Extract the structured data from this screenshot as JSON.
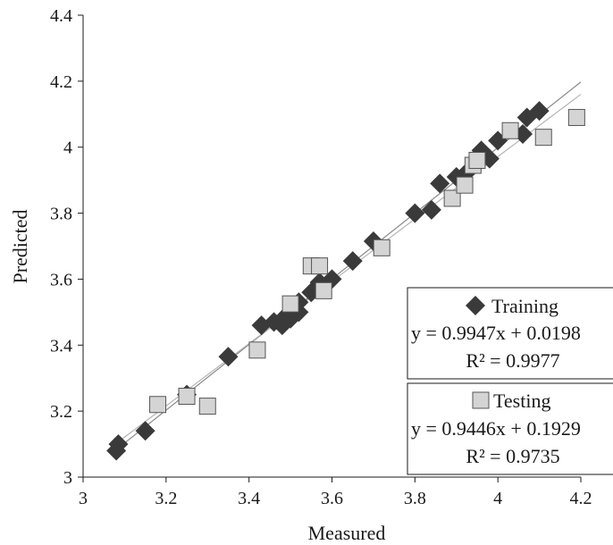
{
  "chart_data": {
    "type": "scatter",
    "title": "",
    "xlabel": "Measured",
    "ylabel": "Predicted",
    "xlim": [
      3,
      4.2
    ],
    "ylim": [
      3,
      4.4
    ],
    "x_ticks": [
      "3",
      "3.2",
      "3.4",
      "3.6",
      "3.8",
      "4",
      "4.2"
    ],
    "y_ticks": [
      "3",
      "3.2",
      "3.4",
      "3.6",
      "3.8",
      "4",
      "4.2",
      "4.4"
    ],
    "grid": false,
    "series": [
      {
        "name": "Training",
        "marker": "diamond",
        "color": "#3a3a3a",
        "equation": "y = 0.9947x + 0.0198",
        "r2": "R² = 0.9977",
        "trend": {
          "slope": 0.9947,
          "intercept": 0.0198
        },
        "points": [
          [
            3.08,
            3.08
          ],
          [
            3.085,
            3.1
          ],
          [
            3.15,
            3.14
          ],
          [
            3.25,
            3.25
          ],
          [
            3.35,
            3.365
          ],
          [
            3.43,
            3.46
          ],
          [
            3.46,
            3.47
          ],
          [
            3.48,
            3.46
          ],
          [
            3.49,
            3.49
          ],
          [
            3.5,
            3.48
          ],
          [
            3.52,
            3.5
          ],
          [
            3.52,
            3.53
          ],
          [
            3.55,
            3.56
          ],
          [
            3.57,
            3.59
          ],
          [
            3.6,
            3.6
          ],
          [
            3.65,
            3.655
          ],
          [
            3.7,
            3.715
          ],
          [
            3.8,
            3.8
          ],
          [
            3.84,
            3.81
          ],
          [
            3.86,
            3.89
          ],
          [
            3.9,
            3.91
          ],
          [
            3.93,
            3.93
          ],
          [
            3.96,
            3.99
          ],
          [
            3.98,
            3.965
          ],
          [
            4.0,
            4.02
          ],
          [
            4.06,
            4.04
          ],
          [
            4.07,
            4.09
          ],
          [
            4.1,
            4.11
          ]
        ]
      },
      {
        "name": "Testing",
        "marker": "square",
        "color": "#d4d4d4",
        "equation": "y = 0.9446x + 0.1929",
        "r2": "R² = 0.9735",
        "trend": {
          "slope": 0.9446,
          "intercept": 0.1929
        },
        "points": [
          [
            3.18,
            3.22
          ],
          [
            3.25,
            3.245
          ],
          [
            3.3,
            3.215
          ],
          [
            3.42,
            3.385
          ],
          [
            3.5,
            3.525
          ],
          [
            3.55,
            3.64
          ],
          [
            3.57,
            3.64
          ],
          [
            3.58,
            3.565
          ],
          [
            3.72,
            3.695
          ],
          [
            3.89,
            3.845
          ],
          [
            3.92,
            3.885
          ],
          [
            3.94,
            3.945
          ],
          [
            3.95,
            3.96
          ],
          [
            4.03,
            4.05
          ],
          [
            4.11,
            4.03
          ],
          [
            4.19,
            4.09
          ]
        ]
      }
    ]
  }
}
